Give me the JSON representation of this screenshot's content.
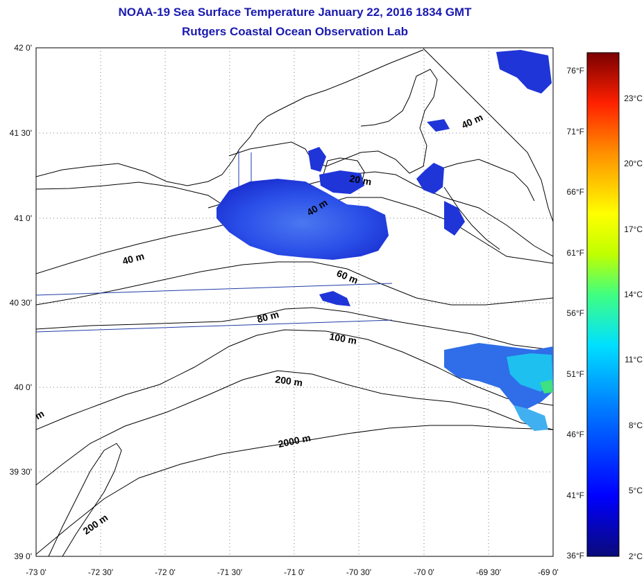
{
  "title": "NOAA-19 Sea Surface Temperature January 22, 2016 1834 GMT",
  "subtitle": "Rutgers Coastal Ocean Observation Lab",
  "lat_labels": [
    "42 0'",
    "41 30'",
    "41 0'",
    "40 30'",
    "40 0'",
    "39 30'",
    "39 0'"
  ],
  "lon_labels": [
    "-73 0'",
    "-72 30'",
    "-72 0'",
    "-71 30'",
    "-71 0'",
    "-70 30'",
    "-70 0'",
    "-69 30'",
    "-69 0'"
  ],
  "fahrenheit_labels": [
    "76°F",
    "71°F",
    "66°F",
    "61°F",
    "56°F",
    "51°F",
    "46°F",
    "41°F",
    "36°F"
  ],
  "celsius_labels": [
    "23°C",
    "20°C",
    "17°C",
    "14°C",
    "11°C",
    "8°C",
    "5°C",
    "2°C"
  ],
  "contour_labels": [
    "20 m",
    "40 m",
    "40 m",
    "40 m",
    "60 m",
    "80 m",
    "100 m",
    "200 m",
    "2000 m",
    "200 m",
    "m"
  ],
  "colors": {
    "title": "#1a1ab0",
    "colorbar": [
      "#0a0a7a",
      "#0000ff",
      "#0080ff",
      "#00e0ff",
      "#40ff80",
      "#c0ff00",
      "#ffff00",
      "#ff9000",
      "#ff2000",
      "#7a0000"
    ],
    "sst_patch": "#2a4ee8",
    "track_line": "#1e3aa8"
  }
}
